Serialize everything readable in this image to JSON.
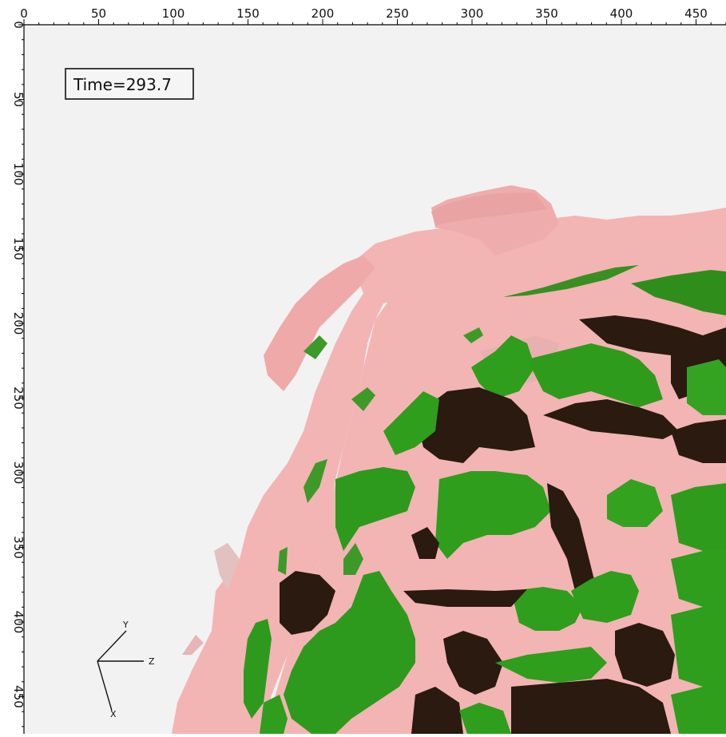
{
  "time_label": "Time=293.7",
  "ruler": {
    "x_ticks": [
      "0",
      "50",
      "100",
      "150",
      "200",
      "250",
      "300",
      "350",
      "400",
      "450"
    ],
    "y_ticks": [
      "0",
      "50",
      "100",
      "150",
      "200",
      "250",
      "300",
      "350",
      "400",
      "450"
    ]
  },
  "orientation": {
    "y_label": "Y",
    "z_label": "Z",
    "x_label": "X"
  },
  "colors": {
    "background": "#f2f2f2",
    "outer_surface": "#f3b3b3",
    "inner_surface": "#2d9a1d",
    "inner_shadow": "#2a1a10"
  }
}
